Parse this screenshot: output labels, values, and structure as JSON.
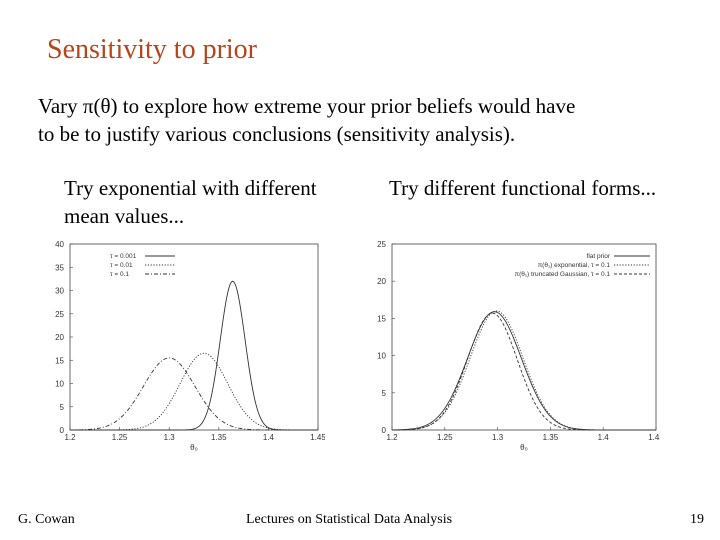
{
  "slide": {
    "title": "Sensitivity to prior",
    "body_line1": "Vary π(θ) to explore how extreme your prior beliefs would have",
    "body_line2": "to be to justify various conclusions (sensitivity analysis).",
    "left_caption_line1": "Try exponential with different",
    "left_caption_line2": "mean values...",
    "right_caption": "Try different functional forms..."
  },
  "footer": {
    "author": "G. Cowan",
    "course": "Lectures on Statistical Data Analysis",
    "page": "19"
  },
  "colors": {
    "title": "#b5451b"
  },
  "chart_data": [
    {
      "type": "line",
      "xlabel": "θ₀",
      "xlim": [
        1.2,
        1.45
      ],
      "ylim": [
        0,
        40
      ],
      "x_ticks": [
        "1.2",
        "1.25",
        "1.3",
        "1.35",
        "1.4",
        "1.45"
      ],
      "y_ticks": [
        "0",
        "5",
        "10",
        "15",
        "20",
        "25",
        "30",
        "35",
        "40"
      ],
      "legend": "top-left",
      "series": [
        {
          "name": "τ = 0.001",
          "style": "solid",
          "mean": 1.364,
          "sigma": 0.0125,
          "peak": 32.0
        },
        {
          "name": "τ = 0.01",
          "style": "dotted",
          "mean": 1.335,
          "sigma": 0.024,
          "peak": 16.5
        },
        {
          "name": "τ = 0.1",
          "style": "dashdot",
          "mean": 1.3,
          "sigma": 0.026,
          "peak": 15.5
        }
      ]
    },
    {
      "type": "line",
      "xlabel": "θ₀",
      "xlim": [
        1.2,
        1.45
      ],
      "ylim": [
        0,
        25
      ],
      "x_ticks": [
        "1.2",
        "1.25",
        "1.3",
        "1.35",
        "1.4",
        "1.45"
      ],
      "y_ticks": [
        "0",
        "5",
        "10",
        "15",
        "20",
        "25"
      ],
      "legend": "top-right",
      "series": [
        {
          "name": "flat prior",
          "style": "solid",
          "mean": 1.297,
          "sigma": 0.0255,
          "peak": 15.9
        },
        {
          "name": "π(θ₁) exponential, τ = 0.1",
          "style": "dotted",
          "mean": 1.299,
          "sigma": 0.025,
          "peak": 16.0
        },
        {
          "name": "π(θ₁) truncated Gaussian, τ = 0.1",
          "style": "dashed",
          "mean": 1.295,
          "sigma": 0.0235,
          "peak": 15.7
        }
      ]
    }
  ]
}
